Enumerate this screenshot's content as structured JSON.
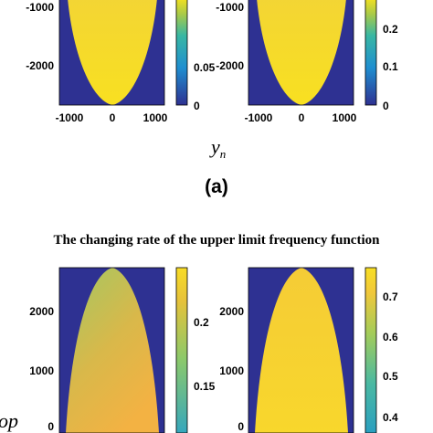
{
  "colors": {
    "background": "#2e3192",
    "low": "#3b9cbf",
    "mid": "#8cc96a",
    "high": "#fbd532",
    "peak": "#f5e11f"
  },
  "labels": {
    "top_xlabel_base": "y",
    "top_xlabel_sub": "n",
    "panel_a": "(a)",
    "title_b": "The changing rate of the upper limit frequency function",
    "left_cut_label": "op"
  },
  "chart_data": [
    {
      "type": "heatmap",
      "id": "a-left",
      "region": "downward parabolic region",
      "xticks": [
        "-1000",
        "0",
        "1000"
      ],
      "xlim": [
        -1300,
        1300
      ],
      "yticks": [
        "-1000",
        "-2000"
      ],
      "ylim": [
        -2800,
        -300
      ],
      "colorbar": {
        "ticks": [
          "0.05",
          "0"
        ],
        "range": [
          0,
          0.1
        ]
      }
    },
    {
      "type": "heatmap",
      "id": "a-right",
      "region": "downward parabolic region",
      "xticks": [
        "-1000",
        "0",
        "1000"
      ],
      "xlim": [
        -1300,
        1300
      ],
      "yticks": [
        "-1000",
        "-2000"
      ],
      "ylim": [
        -2800,
        -300
      ],
      "colorbar": {
        "ticks": [
          "0.2",
          "0.1",
          "0"
        ],
        "range": [
          0,
          0.35
        ]
      }
    },
    {
      "type": "heatmap",
      "id": "b-left",
      "region": "upward parabolic region",
      "yticks": [
        "2000",
        "1000",
        "0"
      ],
      "ylim": [
        0,
        2700
      ],
      "colorbar": {
        "ticks": [
          "0.2",
          "0.15"
        ],
        "range": [
          0.13,
          0.235
        ]
      }
    },
    {
      "type": "heatmap",
      "id": "b-right",
      "region": "upward parabolic region",
      "yticks": [
        "2000",
        "1000",
        "0"
      ],
      "ylim": [
        0,
        2700
      ],
      "colorbar": {
        "ticks": [
          "0.7",
          "0.6",
          "0.5",
          "0.4"
        ],
        "range": [
          0.37,
          0.78
        ]
      }
    }
  ]
}
